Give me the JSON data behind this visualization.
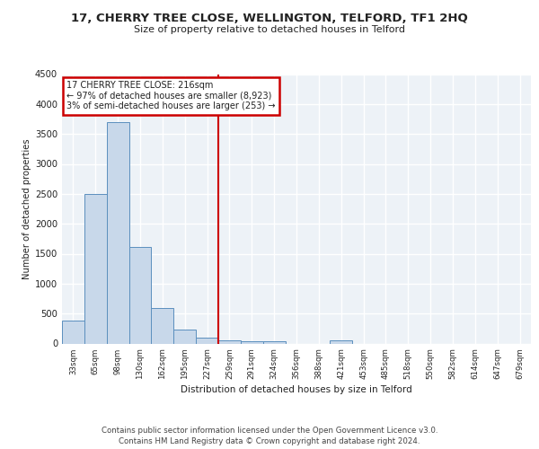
{
  "title": "17, CHERRY TREE CLOSE, WELLINGTON, TELFORD, TF1 2HQ",
  "subtitle": "Size of property relative to detached houses in Telford",
  "xlabel": "Distribution of detached houses by size in Telford",
  "ylabel": "Number of detached properties",
  "categories": [
    "33sqm",
    "65sqm",
    "98sqm",
    "130sqm",
    "162sqm",
    "195sqm",
    "227sqm",
    "259sqm",
    "291sqm",
    "324sqm",
    "356sqm",
    "388sqm",
    "421sqm",
    "453sqm",
    "485sqm",
    "518sqm",
    "550sqm",
    "582sqm",
    "614sqm",
    "647sqm",
    "679sqm"
  ],
  "values": [
    380,
    2500,
    3700,
    1620,
    600,
    240,
    100,
    55,
    45,
    40,
    0,
    0,
    50,
    0,
    0,
    0,
    0,
    0,
    0,
    0,
    0
  ],
  "bar_color": "#c8d8ea",
  "bar_edge_color": "#5b8fbe",
  "vline_color": "#cc0000",
  "vline_pos": 6.5,
  "annotation_text": "17 CHERRY TREE CLOSE: 216sqm\n← 97% of detached houses are smaller (8,923)\n3% of semi-detached houses are larger (253) →",
  "annotation_box_edgecolor": "#cc0000",
  "ylim_max": 4500,
  "yticks": [
    0,
    500,
    1000,
    1500,
    2000,
    2500,
    3000,
    3500,
    4000,
    4500
  ],
  "plot_bg": "#edf2f7",
  "grid_color": "#ffffff",
  "footer_line1": "Contains HM Land Registry data © Crown copyright and database right 2024.",
  "footer_line2": "Contains public sector information licensed under the Open Government Licence v3.0."
}
